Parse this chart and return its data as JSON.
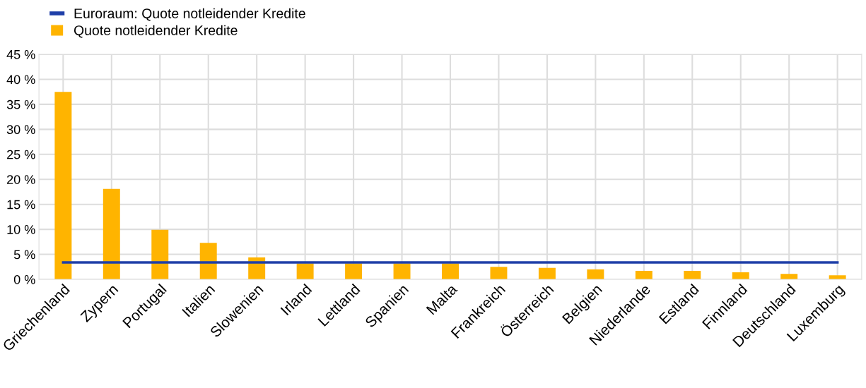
{
  "chart_data": {
    "type": "bar",
    "categories": [
      "Griechenland",
      "Zypern",
      "Portugal",
      "Italien",
      "Slowenien",
      "Irland",
      "Lettland",
      "Spanien",
      "Malta",
      "Frankreich",
      "Österreich",
      "Belgien",
      "Niederlande",
      "Estland",
      "Finnland",
      "Deutschland",
      "Luxemburg"
    ],
    "series": [
      {
        "name": "Euroraum: Quote notleidender Kredite",
        "type": "line",
        "color": "#1f3fa8",
        "values": [
          3.4,
          3.4,
          3.4,
          3.4,
          3.4,
          3.4,
          3.4,
          3.4,
          3.4,
          3.4,
          3.4,
          3.4,
          3.4,
          3.4,
          3.4,
          3.4,
          3.4
        ]
      },
      {
        "name": "Quote notleidender Kredite",
        "color": "#ffb400",
        "values": [
          37.5,
          18.1,
          9.9,
          7.3,
          4.4,
          3.2,
          3.2,
          3.2,
          3.2,
          2.5,
          2.3,
          2.0,
          1.7,
          1.7,
          1.4,
          1.1,
          0.8
        ]
      }
    ],
    "ylim": [
      0,
      45
    ],
    "yticks": [
      {
        "value": 0,
        "label": "0 %"
      },
      {
        "value": 5,
        "label": "5 %"
      },
      {
        "value": 10,
        "label": "10 %"
      },
      {
        "value": 15,
        "label": "15 %"
      },
      {
        "value": 20,
        "label": "20 %"
      },
      {
        "value": 25,
        "label": "25 %"
      },
      {
        "value": 30,
        "label": "30 %"
      },
      {
        "value": 35,
        "label": "35 %"
      },
      {
        "value": 40,
        "label": "40 %"
      },
      {
        "value": 45,
        "label": "45 %"
      }
    ],
    "grid": true,
    "legend": "top left"
  }
}
